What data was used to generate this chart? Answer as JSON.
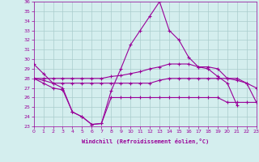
{
  "x": [
    0,
    1,
    2,
    3,
    4,
    5,
    6,
    7,
    8,
    9,
    10,
    11,
    12,
    13,
    14,
    15,
    16,
    17,
    18,
    19,
    20,
    21,
    22,
    23
  ],
  "line1": [
    29.5,
    28.5,
    27.5,
    27.0,
    24.5,
    24.0,
    23.2,
    23.3,
    26.7,
    29.0,
    31.5,
    33.0,
    34.5,
    36.0,
    33.0,
    32.0,
    30.2,
    29.2,
    29.0,
    28.2,
    27.5,
    25.2,
    null,
    null
  ],
  "line2": [
    28.0,
    28.0,
    28.0,
    28.0,
    28.0,
    28.0,
    28.0,
    28.0,
    28.2,
    28.3,
    28.5,
    28.7,
    29.0,
    29.2,
    29.5,
    29.5,
    29.5,
    29.2,
    29.2,
    29.0,
    28.0,
    28.0,
    27.5,
    25.5
  ],
  "line3": [
    28.0,
    27.8,
    27.5,
    27.5,
    27.5,
    27.5,
    27.5,
    27.5,
    27.5,
    27.5,
    27.5,
    27.5,
    27.5,
    27.8,
    28.0,
    28.0,
    28.0,
    28.0,
    28.0,
    28.0,
    28.0,
    27.8,
    27.5,
    27.0
  ],
  "line4": [
    28.0,
    27.5,
    27.0,
    26.8,
    24.5,
    24.0,
    23.2,
    23.3,
    26.0,
    26.0,
    26.0,
    26.0,
    26.0,
    26.0,
    26.0,
    26.0,
    26.0,
    26.0,
    26.0,
    26.0,
    25.5,
    25.5,
    25.5,
    25.5
  ],
  "line_color": "#990099",
  "bg_color": "#d4eeee",
  "grid_color": "#aacccc",
  "ylim": [
    23,
    36
  ],
  "xlim": [
    0,
    23
  ],
  "yticks": [
    23,
    24,
    25,
    26,
    27,
    28,
    29,
    30,
    31,
    32,
    33,
    34,
    35,
    36
  ],
  "xticks": [
    0,
    1,
    2,
    3,
    4,
    5,
    6,
    7,
    8,
    9,
    10,
    11,
    12,
    13,
    14,
    15,
    16,
    17,
    18,
    19,
    20,
    21,
    22,
    23
  ],
  "xlabel": "Windchill (Refroidissement éolien,°C)",
  "figsize": [
    3.2,
    2.0
  ],
  "dpi": 100
}
